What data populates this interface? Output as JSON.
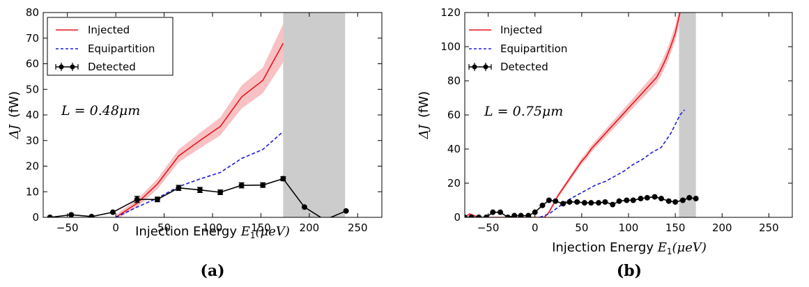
{
  "chart_data": [
    {
      "type": "line",
      "panel_label": "(a)",
      "annotation": {
        "lhs": "L",
        "eq": " = ",
        "rhs": "0.48μm"
      },
      "xlabel": {
        "text": "Injection Energy ",
        "symbol": "E",
        "sub": "1",
        "unit": "(μeV)"
      },
      "ylabel": {
        "delta": "ΔJ",
        "unit": "(fW)"
      },
      "xlim": [
        -75,
        275
      ],
      "ylim": [
        0,
        80
      ],
      "xticks": [
        -50,
        0,
        50,
        100,
        150,
        200,
        250
      ],
      "yticks": [
        0,
        10,
        20,
        30,
        40,
        50,
        60,
        70,
        80
      ],
      "shaded_region": [
        173,
        237
      ],
      "legend": {
        "position": "top-left",
        "entries": [
          "Injected",
          "Equipartition",
          "Detected"
        ]
      },
      "series": [
        {
          "name": "Injected",
          "color": "#e8141b",
          "style": "solid",
          "x": [
            0,
            22,
            43,
            65,
            87,
            108,
            130,
            152,
            173
          ],
          "y": [
            0,
            5.5,
            13,
            24,
            30,
            35.5,
            47,
            53.5,
            68
          ],
          "band": [
            1,
            1.5,
            2,
            2.5,
            3,
            3.5,
            4.5,
            5,
            7.5
          ]
        },
        {
          "name": "Equipartition",
          "color": "#1b1bd8",
          "style": "dashed",
          "x": [
            0,
            22,
            43,
            65,
            87,
            108,
            130,
            152,
            173
          ],
          "y": [
            0,
            4,
            7.5,
            12,
            15,
            17.5,
            23,
            26.5,
            33.5
          ]
        },
        {
          "name": "Detected",
          "color": "#000000",
          "style": "solid-markers",
          "x": [
            -68,
            -46,
            -25,
            -3,
            22,
            43,
            65,
            87,
            108,
            130,
            152,
            173,
            195,
            216,
            238
          ],
          "y": [
            0,
            1,
            0.3,
            2,
            7,
            7,
            11.5,
            10.7,
            9.8,
            12.5,
            12.6,
            15.1,
            4,
            -1,
            2.5
          ],
          "yerr": [
            0,
            0,
            0,
            0,
            1.2,
            0.9,
            1,
            1,
            0.9,
            1,
            0.9,
            0.8,
            0,
            0,
            0
          ]
        }
      ]
    },
    {
      "type": "line",
      "panel_label": "(b)",
      "annotation": {
        "lhs": "L",
        "eq": " = ",
        "rhs": "0.75μm"
      },
      "xlabel": {
        "text": "Injection Energy ",
        "symbol": "E",
        "sub": "1",
        "unit": "(μeV)"
      },
      "ylabel": {
        "delta": "ΔJ",
        "unit": "(fW)"
      },
      "xlim": [
        -75,
        275
      ],
      "ylim": [
        0,
        120
      ],
      "xticks": [
        -50,
        0,
        50,
        100,
        150,
        200,
        250
      ],
      "yticks": [
        0,
        20,
        40,
        60,
        80,
        100,
        120
      ],
      "shaded_region": [
        154,
        172
      ],
      "legend": {
        "position": "top-left",
        "entries": [
          "Injected",
          "Equipartition",
          "Detected"
        ]
      },
      "series": [
        {
          "name": "Injected",
          "color": "#e8141b",
          "style": "solid",
          "x": [
            -75,
            -70,
            -65,
            -60,
            -50,
            -45,
            -40,
            -35,
            -30,
            -25,
            -20,
            -15,
            -10,
            -5,
            0,
            5,
            10,
            15,
            20,
            25,
            30,
            35,
            40,
            45,
            50,
            55,
            60,
            65,
            70,
            75,
            80,
            85,
            90,
            95,
            100,
            105,
            110,
            115,
            120,
            125,
            130,
            135,
            140,
            145,
            150,
            155
          ],
          "y": [
            0,
            2,
            1,
            0,
            0,
            0,
            0,
            0,
            0,
            0,
            0,
            0,
            0,
            0,
            0,
            0,
            0,
            3,
            8,
            13,
            17,
            21,
            25,
            29,
            33,
            36,
            40,
            43,
            46,
            49,
            52,
            55,
            58,
            61,
            64,
            67,
            70,
            73,
            76,
            79,
            82,
            87,
            93,
            100,
            108,
            120
          ],
          "band": [
            0,
            0.5,
            0.5,
            0,
            0,
            0,
            0,
            0,
            0,
            0,
            0,
            0,
            0,
            0,
            0,
            0,
            0,
            0.8,
            1,
            1.2,
            1.4,
            1.5,
            1.6,
            1.7,
            1.8,
            2,
            2,
            2.1,
            2.2,
            2.3,
            2.4,
            2.5,
            2.6,
            2.7,
            2.8,
            2.9,
            3,
            3.2,
            3.4,
            3.5,
            3.6,
            3.8,
            4,
            4.2,
            4.5,
            5
          ]
        },
        {
          "name": "Equipartition",
          "color": "#1b1bd8",
          "style": "dashed",
          "x": [
            5,
            15,
            25,
            35,
            45,
            55,
            65,
            75,
            85,
            95,
            105,
            115,
            125,
            135,
            145,
            155,
            160
          ],
          "y": [
            0,
            2,
            6,
            10,
            13,
            16,
            19,
            21,
            24,
            27,
            31,
            34,
            38,
            41,
            49,
            60,
            63
          ],
          "band": []
        },
        {
          "name": "Detected",
          "color": "#000000",
          "style": "solid-markers",
          "x": [
            -75,
            -68,
            -60,
            -52,
            -45,
            -37,
            -29,
            -22,
            -15,
            -7,
            0,
            8,
            15,
            22,
            30,
            37,
            45,
            53,
            60,
            68,
            75,
            83,
            90,
            98,
            105,
            113,
            120,
            128,
            135,
            143,
            150,
            158,
            165,
            172
          ],
          "y": [
            0,
            0,
            0,
            0,
            3,
            3,
            0,
            1,
            1,
            1,
            3,
            7,
            10,
            9.5,
            8,
            9,
            9,
            8.5,
            8.5,
            8.5,
            9,
            7.5,
            9.5,
            10,
            10,
            11,
            11.5,
            12,
            11,
            9.5,
            9,
            10,
            11.5,
            11
          ],
          "yerr": []
        }
      ]
    }
  ]
}
